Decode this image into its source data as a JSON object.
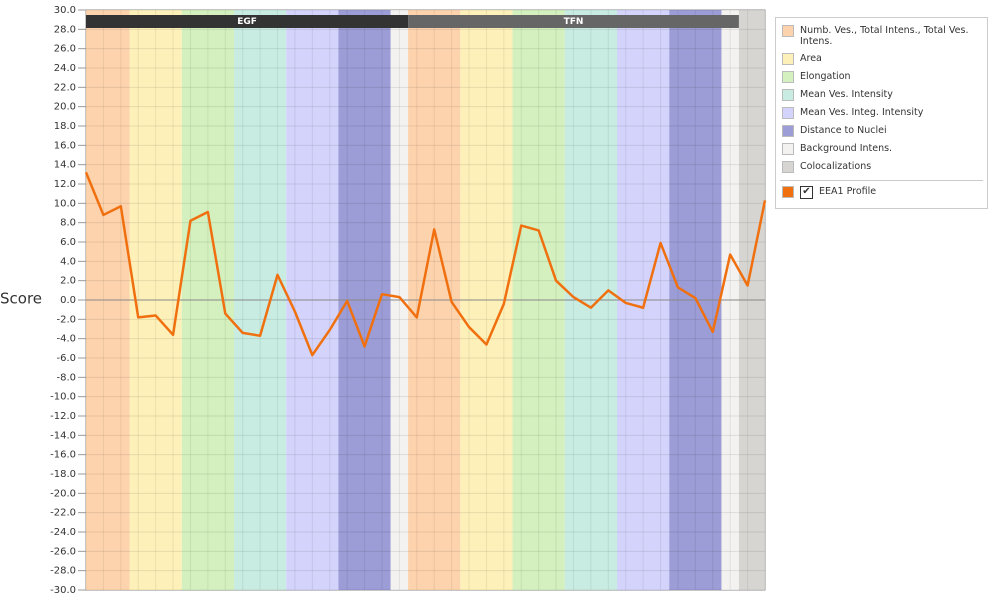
{
  "chart_data": {
    "type": "line",
    "y_label": "Score",
    "values": [
      13.2,
      8.8,
      9.7,
      -1.8,
      -1.6,
      -3.6,
      8.2,
      9.1,
      -1.4,
      -3.4,
      -3.7,
      2.6,
      -1.2,
      -5.7,
      -3.1,
      -0.1,
      -4.8,
      0.6,
      0.3,
      -1.8,
      7.3,
      -0.2,
      -2.8,
      -4.6,
      -0.4,
      7.7,
      7.2,
      2.0,
      0.3,
      -0.8,
      1.0,
      -0.3,
      -0.8,
      5.9,
      1.3,
      0.2,
      -3.3,
      4.7,
      1.5,
      10.3
    ],
    "line_name": "EEA1 Profile",
    "line_color": "#f07010",
    "ylim": [
      -30,
      30
    ],
    "yticks": [
      {
        "value": -30,
        "label": "-30.0"
      },
      {
        "value": -28,
        "label": "-28.0"
      },
      {
        "value": -26,
        "label": "-26.0"
      },
      {
        "value": -24,
        "label": "-24.0"
      },
      {
        "value": -22,
        "label": "-22.0"
      },
      {
        "value": -20,
        "label": "-20.0"
      },
      {
        "value": -18,
        "label": "-18.0"
      },
      {
        "value": -16,
        "label": "-16.0"
      },
      {
        "value": -14,
        "label": "-14.0"
      },
      {
        "value": -12,
        "label": "-12.0"
      },
      {
        "value": -10,
        "label": "-10.0"
      },
      {
        "value": -8,
        "label": "-8.0"
      },
      {
        "value": -6,
        "label": "-6.0"
      },
      {
        "value": -4,
        "label": "-4.0"
      },
      {
        "value": -2,
        "label": "-2.0"
      },
      {
        "value": 0,
        "label": "0.0"
      },
      {
        "value": 2,
        "label": "2.0"
      },
      {
        "value": 4,
        "label": "4.0"
      },
      {
        "value": 6,
        "label": "6.0"
      },
      {
        "value": 8,
        "label": "8.0"
      },
      {
        "value": 10,
        "label": "10.0"
      },
      {
        "value": 12,
        "label": "12.0"
      },
      {
        "value": 14,
        "label": "14.0"
      },
      {
        "value": 16,
        "label": "16.0"
      },
      {
        "value": 18,
        "label": "18.0"
      },
      {
        "value": 20,
        "label": "20.0"
      },
      {
        "value": 22,
        "label": "22.0"
      },
      {
        "value": 24,
        "label": "24.0"
      },
      {
        "value": 26,
        "label": "26.0"
      },
      {
        "value": 28,
        "label": "28.0"
      },
      {
        "value": 30,
        "label": "30.0"
      }
    ],
    "grid": true,
    "groups": [
      {
        "name": "Numb. Ves., Total Intens., Total Ves. Intens.",
        "color": "#fdd3ad"
      },
      {
        "name": "Area",
        "color": "#fdf0b8"
      },
      {
        "name": "Elongation",
        "color": "#d3f0be"
      },
      {
        "name": "Mean Ves. Intensity",
        "color": "#c8ece2"
      },
      {
        "name": "Mean Ves. Integ. Intensity",
        "color": "#d3d3fb"
      },
      {
        "name": "Distance to Nuclei",
        "color": "#9c9cd6"
      },
      {
        "name": "Background Intens.",
        "color": "#f3f2f0"
      },
      {
        "name": "Colocalizations",
        "color": "#d6d5d1"
      }
    ],
    "bands": [
      {
        "group": 0,
        "from": 0,
        "to": 2.5
      },
      {
        "group": 1,
        "from": 2.5,
        "to": 5.5
      },
      {
        "group": 2,
        "from": 5.5,
        "to": 8.5
      },
      {
        "group": 3,
        "from": 8.5,
        "to": 11.5
      },
      {
        "group": 4,
        "from": 11.5,
        "to": 14.5
      },
      {
        "group": 5,
        "from": 14.5,
        "to": 17.5
      },
      {
        "group": 6,
        "from": 17.5,
        "to": 18.5
      },
      {
        "group": 0,
        "from": 18.5,
        "to": 21.5
      },
      {
        "group": 1,
        "from": 21.5,
        "to": 24.5
      },
      {
        "group": 2,
        "from": 24.5,
        "to": 27.5
      },
      {
        "group": 3,
        "from": 27.5,
        "to": 30.5
      },
      {
        "group": 4,
        "from": 30.5,
        "to": 33.5
      },
      {
        "group": 5,
        "from": 33.5,
        "to": 36.5
      },
      {
        "group": 6,
        "from": 36.5,
        "to": 37.5
      },
      {
        "group": 7,
        "from": 37.5,
        "to": 39
      }
    ],
    "conditions": [
      {
        "label": "EGF",
        "from": 0,
        "to": 18.5,
        "color": "#333333"
      },
      {
        "label": "TFN",
        "from": 18.5,
        "to": 37.5,
        "color": "#666666"
      }
    ]
  }
}
